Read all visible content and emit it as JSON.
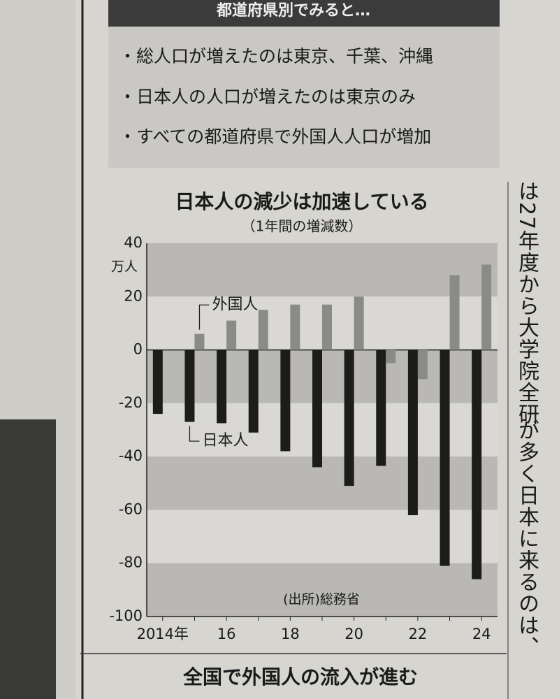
{
  "header": {
    "box_title": "都道府県別でみると…",
    "bullets": [
      "・総人口が増えたのは東京、千葉、沖縄",
      "・日本人の人口が増えたのは東京のみ",
      "・すべての都道府県で外国人人口が増加"
    ]
  },
  "chart_data": {
    "type": "bar",
    "title": "日本人の減少は加速している",
    "subtitle": "（1年間の増減数）",
    "y_unit": "万人",
    "source": "(出所)総務省",
    "categories": [
      "2014年",
      null,
      "16",
      null,
      "18",
      null,
      "20",
      null,
      "22",
      null,
      "24"
    ],
    "series": [
      {
        "name": "日本人",
        "color": "#1c1c1c",
        "values": [
          -24,
          -27,
          -27.5,
          -31,
          -38,
          -44,
          -51,
          -43.5,
          -62,
          -81,
          -86
        ]
      },
      {
        "name": "外国人",
        "color": "#8a8a88",
        "values": [
          null,
          6,
          11,
          15,
          17,
          17,
          20,
          -5,
          -11,
          28,
          32
        ]
      }
    ],
    "ylim": [
      -100,
      40
    ],
    "yticks": [
      40,
      20,
      0,
      -20,
      -40,
      -60,
      -80,
      -100
    ],
    "grid": true
  },
  "footer": {
    "headline": "全国で外国人の流入が進む"
  },
  "side_text": [
    "は27年度から大学院全研",
    "が多く日本に来るのは、"
  ]
}
